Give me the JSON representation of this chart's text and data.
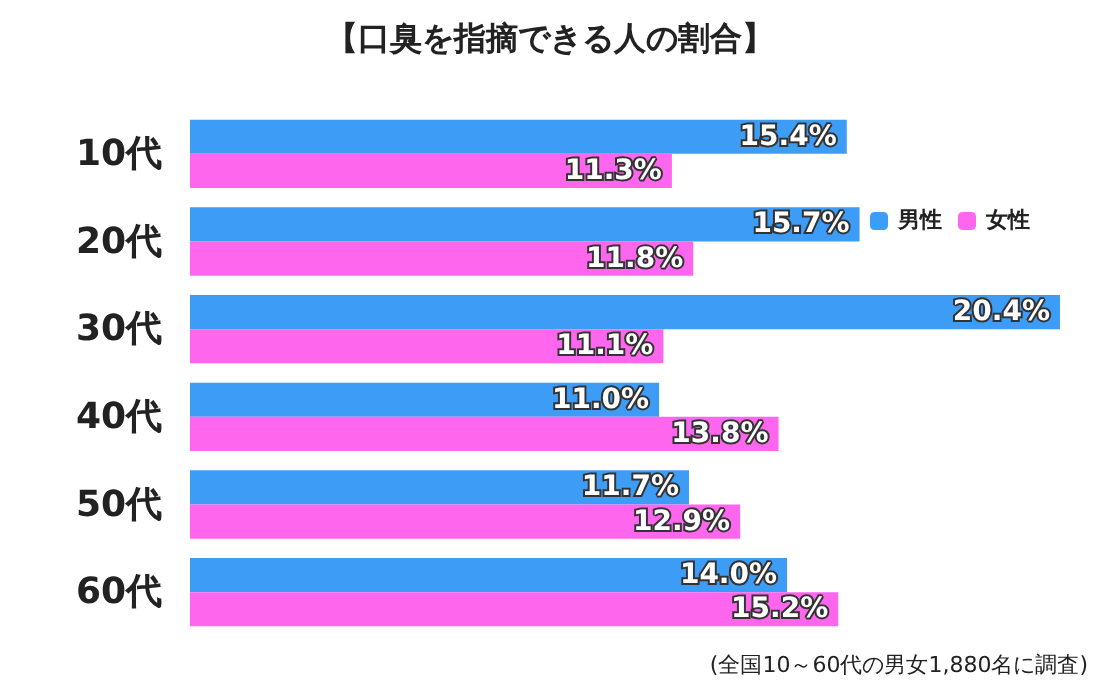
{
  "chart_data": {
    "type": "bar",
    "orientation": "horizontal",
    "title": "【口臭を指摘できる人の割合】",
    "categories": [
      "10代",
      "20代",
      "30代",
      "40代",
      "50代",
      "60代"
    ],
    "series": [
      {
        "name": "男性",
        "color": "#3d9cf5",
        "values": [
          15.4,
          15.7,
          20.4,
          11.0,
          11.7,
          14.0
        ],
        "value_labels": [
          "15.4%",
          "15.7%",
          "20.4%",
          "11.0%",
          "11.7%",
          "14.0%"
        ]
      },
      {
        "name": "女性",
        "color": "#ff66ee",
        "values": [
          11.3,
          11.8,
          11.1,
          13.8,
          12.9,
          15.2
        ],
        "value_labels": [
          "11.3%",
          "11.8%",
          "11.1%",
          "13.8%",
          "12.9%",
          "15.2%"
        ]
      }
    ],
    "legend": "top right",
    "annotations": [
      "(全国10～60代の男女1,880名に調査)"
    ]
  }
}
